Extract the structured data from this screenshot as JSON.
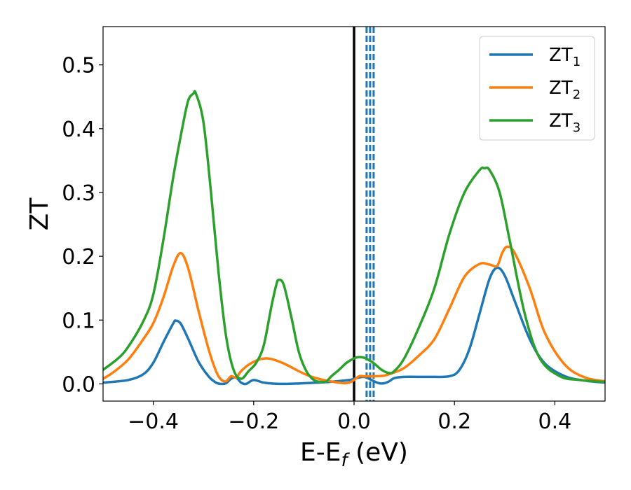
{
  "chart_data": {
    "type": "line",
    "xlabel": "E-E_f (eV)",
    "xlabel_parts": {
      "main": "E-E",
      "sub": "f",
      "rest": " (eV)"
    },
    "ylabel": "ZT",
    "xlim": [
      -0.5,
      0.5
    ],
    "ylim": [
      -0.027,
      0.56
    ],
    "xticks": [
      -0.4,
      -0.2,
      0.0,
      0.2,
      0.4
    ],
    "xtick_labels": [
      "−0.4",
      "−0.2",
      "0.0",
      "0.2",
      "0.4"
    ],
    "yticks": [
      0.0,
      0.1,
      0.2,
      0.3,
      0.4,
      0.5
    ],
    "ytick_labels": [
      "0.0",
      "0.1",
      "0.2",
      "0.3",
      "0.4",
      "0.5"
    ],
    "grid": false,
    "legend_position": "top-right",
    "vertical_lines": [
      {
        "x": 0.0,
        "style": "solid",
        "color": "#000000"
      },
      {
        "x": 0.025,
        "style": "dashed",
        "color": "#1f77b4"
      },
      {
        "x": 0.032,
        "style": "dashed",
        "color": "#1f77b4"
      },
      {
        "x": 0.039,
        "style": "dashed",
        "color": "#1f77b4"
      }
    ],
    "series": [
      {
        "name": "ZT_1",
        "label_main": "ZT",
        "label_sub": "1",
        "color": "#1f77b4",
        "x": [
          -0.5,
          -0.45,
          -0.42,
          -0.4,
          -0.38,
          -0.36,
          -0.355,
          -0.345,
          -0.33,
          -0.31,
          -0.29,
          -0.275,
          -0.265,
          -0.255,
          -0.245,
          -0.235,
          -0.225,
          -0.215,
          -0.2,
          -0.18,
          -0.15,
          -0.1,
          -0.05,
          -0.01,
          0.0,
          0.01,
          0.02,
          0.03,
          0.04,
          0.05,
          0.06,
          0.07,
          0.08,
          0.1,
          0.15,
          0.19,
          0.21,
          0.23,
          0.25,
          0.27,
          0.285,
          0.3,
          0.32,
          0.35,
          0.38,
          0.42,
          0.46,
          0.5
        ],
        "y": [
          0.002,
          0.006,
          0.015,
          0.033,
          0.065,
          0.095,
          0.099,
          0.094,
          0.07,
          0.035,
          0.012,
          0.002,
          0.0,
          0.001,
          0.008,
          0.01,
          0.002,
          0.0,
          0.006,
          0.002,
          0.0,
          0.001,
          0.003,
          0.006,
          0.008,
          0.01,
          0.011,
          0.008,
          0.004,
          0.001,
          0.001,
          0.004,
          0.009,
          0.011,
          0.011,
          0.012,
          0.022,
          0.055,
          0.11,
          0.165,
          0.182,
          0.17,
          0.13,
          0.07,
          0.032,
          0.012,
          0.005,
          0.002
        ]
      },
      {
        "name": "ZT_2",
        "label_main": "ZT",
        "label_sub": "2",
        "color": "#ff7f0e",
        "x": [
          -0.5,
          -0.48,
          -0.45,
          -0.42,
          -0.4,
          -0.38,
          -0.36,
          -0.345,
          -0.33,
          -0.31,
          -0.29,
          -0.275,
          -0.265,
          -0.255,
          -0.245,
          -0.235,
          -0.225,
          -0.21,
          -0.19,
          -0.175,
          -0.16,
          -0.14,
          -0.12,
          -0.1,
          -0.08,
          -0.06,
          -0.04,
          -0.02,
          -0.01,
          0.0,
          0.01,
          0.02,
          0.04,
          0.06,
          0.08,
          0.1,
          0.13,
          0.16,
          0.19,
          0.22,
          0.25,
          0.27,
          0.285,
          0.295,
          0.305,
          0.32,
          0.35,
          0.38,
          0.42,
          0.46,
          0.5
        ],
        "y": [
          0.008,
          0.018,
          0.038,
          0.07,
          0.095,
          0.135,
          0.185,
          0.205,
          0.18,
          0.115,
          0.055,
          0.02,
          0.007,
          0.004,
          0.012,
          0.01,
          0.02,
          0.03,
          0.038,
          0.04,
          0.038,
          0.032,
          0.024,
          0.016,
          0.01,
          0.006,
          0.003,
          0.001,
          0.002,
          0.006,
          0.012,
          0.012,
          0.012,
          0.013,
          0.018,
          0.025,
          0.045,
          0.07,
          0.118,
          0.168,
          0.188,
          0.187,
          0.185,
          0.205,
          0.215,
          0.205,
          0.15,
          0.08,
          0.03,
          0.01,
          0.004
        ]
      },
      {
        "name": "ZT_3",
        "label_main": "ZT",
        "label_sub": "3",
        "color": "#2ca02c",
        "x": [
          -0.5,
          -0.47,
          -0.45,
          -0.42,
          -0.4,
          -0.38,
          -0.36,
          -0.34,
          -0.33,
          -0.32,
          -0.315,
          -0.3,
          -0.285,
          -0.27,
          -0.255,
          -0.24,
          -0.225,
          -0.21,
          -0.195,
          -0.18,
          -0.165,
          -0.155,
          -0.15,
          -0.14,
          -0.125,
          -0.11,
          -0.095,
          -0.08,
          -0.065,
          -0.055,
          -0.045,
          -0.03,
          -0.015,
          0.0,
          0.01,
          0.02,
          0.03,
          0.04,
          0.055,
          0.07,
          0.08,
          0.1,
          0.13,
          0.16,
          0.19,
          0.22,
          0.25,
          0.26,
          0.27,
          0.29,
          0.31,
          0.34,
          0.37,
          0.41,
          0.45,
          0.5
        ],
        "y": [
          0.022,
          0.04,
          0.058,
          0.098,
          0.14,
          0.225,
          0.325,
          0.41,
          0.445,
          0.455,
          0.455,
          0.41,
          0.3,
          0.175,
          0.075,
          0.022,
          0.008,
          0.02,
          0.033,
          0.06,
          0.12,
          0.155,
          0.163,
          0.155,
          0.105,
          0.05,
          0.02,
          0.006,
          0.003,
          0.004,
          0.012,
          0.022,
          0.033,
          0.04,
          0.042,
          0.041,
          0.037,
          0.032,
          0.022,
          0.017,
          0.02,
          0.04,
          0.09,
          0.15,
          0.235,
          0.3,
          0.335,
          0.338,
          0.335,
          0.3,
          0.225,
          0.11,
          0.04,
          0.012,
          0.006,
          0.003
        ]
      }
    ]
  }
}
